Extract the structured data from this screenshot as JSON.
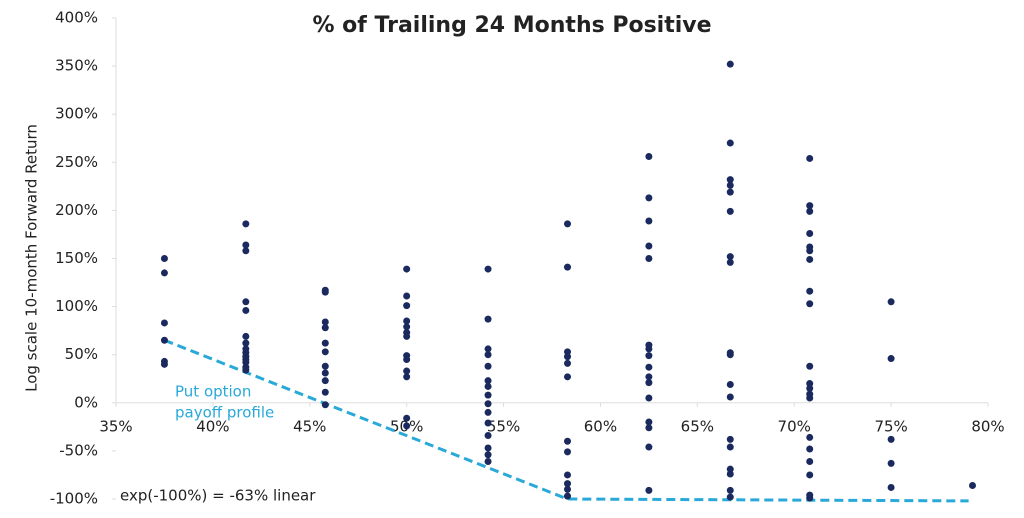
{
  "chart_data": {
    "type": "scatter",
    "title": "% of Trailing 24 Months Positive",
    "y_label": "Log scale 10-month Forward Return",
    "annotations": [
      "Put option",
      "payoff profile",
      "exp(-100%) = -63% linear"
    ],
    "xlim": [
      35,
      80
    ],
    "ylim": [
      -100,
      400
    ],
    "xticks": [
      {
        "value": 35,
        "label": "35%"
      },
      {
        "value": 40,
        "label": "40%"
      },
      {
        "value": 45,
        "label": "45%"
      },
      {
        "value": 50,
        "label": "50%"
      },
      {
        "value": 55,
        "label": "55%"
      },
      {
        "value": 60,
        "label": "60%"
      },
      {
        "value": 65,
        "label": "65%"
      },
      {
        "value": 70,
        "label": "70%"
      },
      {
        "value": 75,
        "label": "75%"
      },
      {
        "value": 80,
        "label": "80%"
      }
    ],
    "yticks": [
      {
        "value": -100,
        "label": "-100%"
      },
      {
        "value": -50,
        "label": "-50%"
      },
      {
        "value": 0,
        "label": "0%"
      },
      {
        "value": 50,
        "label": "50%"
      },
      {
        "value": 100,
        "label": "100%"
      },
      {
        "value": 150,
        "label": "150%"
      },
      {
        "value": 200,
        "label": "200%"
      },
      {
        "value": 250,
        "label": "250%"
      },
      {
        "value": 300,
        "label": "300%"
      },
      {
        "value": 350,
        "label": "350%"
      },
      {
        "value": 400,
        "label": "400%"
      }
    ],
    "color": "#1b2a5e",
    "x": [
      37.5,
      37.5,
      37.5,
      37.5,
      37.5,
      37.5,
      41.7,
      41.7,
      41.7,
      41.7,
      41.7,
      41.7,
      41.7,
      41.7,
      41.7,
      41.7,
      41.7,
      41.7,
      41.7,
      41.7,
      45.8,
      45.8,
      45.8,
      45.8,
      45.8,
      45.8,
      45.8,
      45.8,
      45.8,
      45.8,
      45.8,
      50,
      50,
      50,
      50,
      50,
      50,
      50,
      50,
      50,
      50,
      50,
      50,
      50,
      54.2,
      54.2,
      54.2,
      54.2,
      54.2,
      54.2,
      54.2,
      54.2,
      54.2,
      54.2,
      54.2,
      54.2,
      54.2,
      54.2,
      54.2,
      58.3,
      58.3,
      58.3,
      58.3,
      58.3,
      58.3,
      58.3,
      58.3,
      58.3,
      58.3,
      58.3,
      58.3,
      62.5,
      62.5,
      62.5,
      62.5,
      62.5,
      62.5,
      62.5,
      62.5,
      62.5,
      62.5,
      62.5,
      62.5,
      62.5,
      62.5,
      62.5,
      62.5,
      66.7,
      66.7,
      66.7,
      66.7,
      66.7,
      66.7,
      66.7,
      66.7,
      66.7,
      66.7,
      66.7,
      66.7,
      66.7,
      66.7,
      66.7,
      66.7,
      66.7,
      66.7,
      70.8,
      70.8,
      70.8,
      70.8,
      70.8,
      70.8,
      70.8,
      70.8,
      70.8,
      70.8,
      70.8,
      70.8,
      70.8,
      70.8,
      70.8,
      70.8,
      70.8,
      70.8,
      70.8,
      70.8,
      75,
      75,
      75,
      75,
      75,
      79.2
    ],
    "values": [
      150,
      135,
      83,
      65,
      43,
      40,
      186,
      164,
      158,
      105,
      96,
      69,
      62,
      56,
      52,
      48,
      45,
      42,
      37,
      34,
      117,
      115,
      84,
      78,
      62,
      53,
      38,
      31,
      23,
      11,
      -2,
      139,
      111,
      101,
      85,
      79,
      73,
      69,
      49,
      45,
      33,
      27,
      -16,
      -24,
      139,
      87,
      56,
      50,
      38,
      23,
      17,
      8,
      -1,
      -10,
      -21,
      -34,
      -47,
      -54,
      -61,
      186,
      141,
      53,
      48,
      41,
      27,
      -40,
      -51,
      -75,
      -84,
      -90,
      -97,
      256,
      213,
      189,
      163,
      150,
      60,
      56,
      49,
      37,
      27,
      21,
      5,
      -20,
      -26,
      -46,
      -91,
      352,
      270,
      232,
      226,
      219,
      199,
      152,
      146,
      52,
      50,
      19,
      6,
      -38,
      -46,
      -69,
      -74,
      -91,
      -98,
      254,
      205,
      199,
      176,
      162,
      158,
      149,
      116,
      103,
      38,
      20,
      15,
      9,
      5,
      -36,
      -48,
      -61,
      -75,
      -96,
      -99,
      105,
      46,
      -38,
      -63,
      -88,
      -86
    ],
    "payoff_line": {
      "color": "#29a9d8",
      "x": [
        37.5,
        58.3,
        79
      ],
      "values": [
        65,
        -100,
        -102
      ]
    }
  }
}
